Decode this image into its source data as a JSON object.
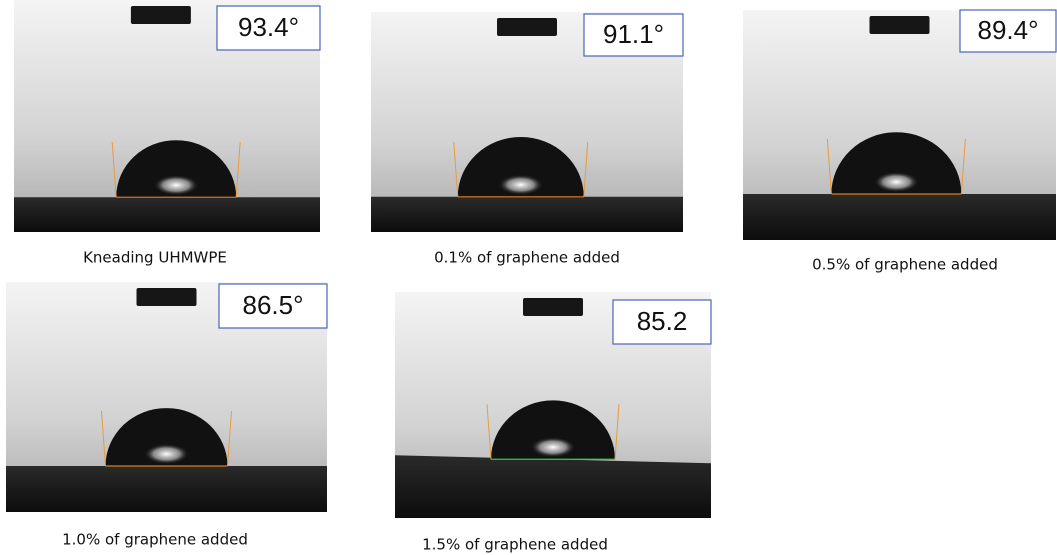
{
  "panels": [
    {
      "angle": "93.4°",
      "caption": "Kneading UHMWPE"
    },
    {
      "angle": "91.1°",
      "caption": "0.1% of graphene added"
    },
    {
      "angle": "89.4°",
      "caption": "0.5% of graphene added"
    },
    {
      "angle": "86.5°",
      "caption": "1.0% of graphene added"
    },
    {
      "angle": "85.2",
      "caption": "1.5% of graphene added"
    }
  ]
}
